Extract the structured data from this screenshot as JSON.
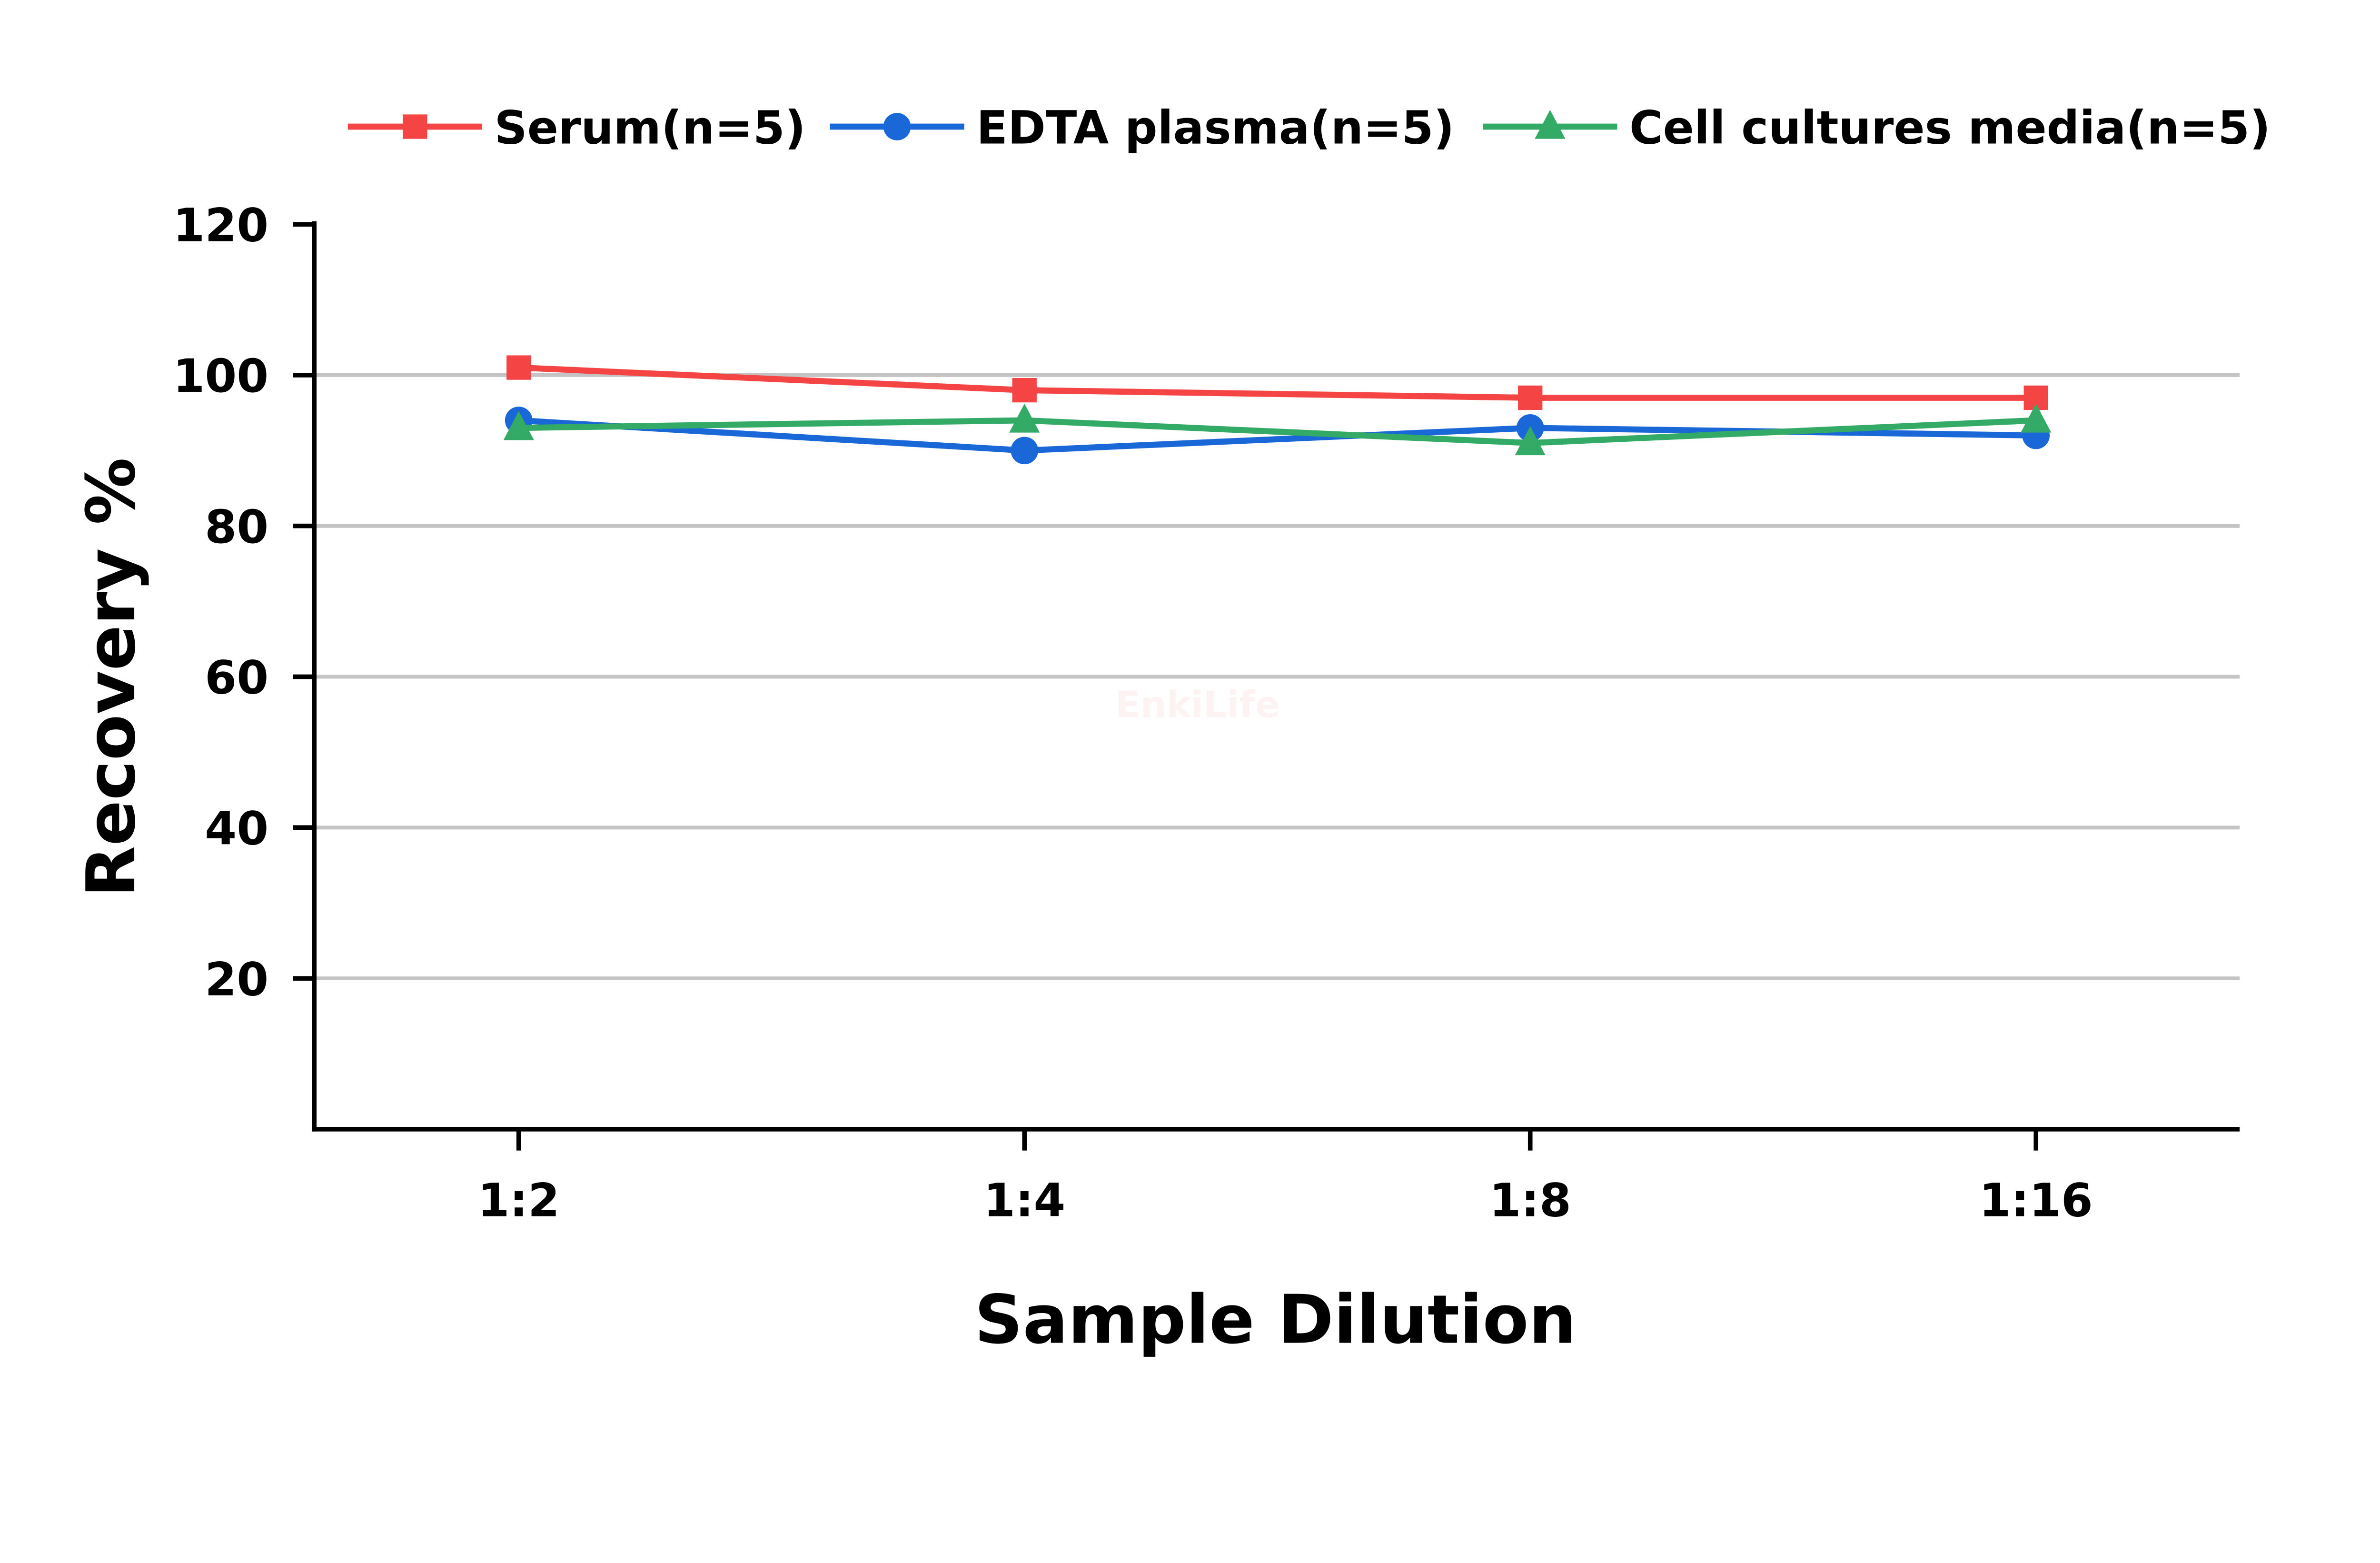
{
  "chart_data": {
    "type": "line",
    "title": "",
    "xlabel": "Sample Dilution",
    "ylabel": "Recovery %",
    "categories": [
      "1:2",
      "1:4",
      "1:8",
      "1:16"
    ],
    "ylim": [
      0,
      120
    ],
    "yticks": [
      20,
      40,
      60,
      80,
      100,
      120
    ],
    "grid": true,
    "legend_position": "top",
    "series": [
      {
        "name": "Serum(n=5)",
        "color": "#f44444",
        "marker": "square",
        "values": [
          101,
          98,
          97,
          97
        ]
      },
      {
        "name": "EDTA plasma(n=5)",
        "color": "#1a68d8",
        "marker": "circle",
        "values": [
          94,
          90,
          93,
          92
        ]
      },
      {
        "name": "Cell cultures media(n=5)",
        "color": "#33aa66",
        "marker": "triangle",
        "values": [
          93,
          94,
          91,
          94
        ]
      }
    ],
    "watermark": "EnkiLife"
  }
}
